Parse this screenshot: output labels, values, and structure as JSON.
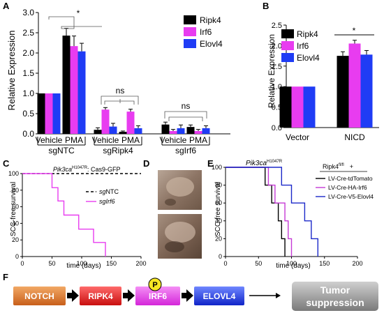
{
  "colors": {
    "ripk4": "#000000",
    "irf6": "#e83cf0",
    "elovl4": "#1f3cf5",
    "tdtomato": "#000000",
    "ha_irf6": "#c53ad6",
    "v5_elovl4": "#1b28c9"
  },
  "panels": {
    "A": "A",
    "B": "B",
    "C": "C",
    "D": "D",
    "E": "E",
    "F": "F"
  },
  "chart_data": [
    {
      "type": "bar",
      "panel": "A",
      "ylabel": "Relative Expression",
      "ylim": [
        0,
        3.0
      ],
      "yticks": [
        "0.0",
        "0.5",
        "1.0",
        "1.5",
        "2.0",
        "2.5",
        "3.0"
      ],
      "legend": [
        "Ripk4",
        "Irf6",
        "Elovl4"
      ],
      "legend_placement": "top-right",
      "groups": [
        {
          "name": "sgNTC",
          "categories": [
            "Vehicle",
            "PMA"
          ]
        },
        {
          "name": "sgRipk4",
          "categories": [
            "Vehicle",
            "PMA"
          ]
        },
        {
          "name": "sgIrf6",
          "categories": [
            "Vehicle",
            "PMA"
          ]
        }
      ],
      "series": [
        {
          "name": "Ripk4",
          "values": [
            1.0,
            2.43,
            0.1,
            0.05,
            0.23,
            0.17
          ],
          "errors": [
            0,
            0.18,
            0.05,
            0.02,
            0.06,
            0.05
          ]
        },
        {
          "name": "Irf6",
          "values": [
            1.0,
            2.17,
            0.6,
            0.55,
            0.07,
            0.07
          ],
          "errors": [
            0,
            0.25,
            0.05,
            0.06,
            0.04,
            0.04
          ]
        },
        {
          "name": "Elovl4",
          "values": [
            1.0,
            2.04,
            0.18,
            0.14,
            0.14,
            0.14
          ],
          "errors": [
            0,
            0.2,
            0.08,
            0.06,
            0.08,
            0.06
          ]
        }
      ],
      "annotations": [
        "*",
        "ns",
        "ns",
        "ns"
      ]
    },
    {
      "type": "bar",
      "panel": "B",
      "ylabel": "Relative Expression",
      "ylim": [
        0,
        2.5
      ],
      "yticks": [
        "0.0",
        "0.5",
        "1.0",
        "1.5",
        "2.0",
        "2.5"
      ],
      "legend": [
        "Ripk4",
        "Irf6",
        "Elovl4"
      ],
      "legend_placement": "top-left",
      "categories": [
        "Vector",
        "NICD"
      ],
      "series": [
        {
          "name": "Ripk4",
          "values": [
            1.0,
            1.75
          ],
          "errors": [
            0,
            0.1
          ]
        },
        {
          "name": "Irf6",
          "values": [
            1.0,
            2.05
          ],
          "errors": [
            0,
            0.08
          ]
        },
        {
          "name": "Elovl4",
          "values": [
            1.0,
            1.78
          ],
          "errors": [
            0,
            0.1
          ]
        }
      ],
      "annotations": [
        "*"
      ]
    },
    {
      "type": "line",
      "panel": "C",
      "title_parts": [
        "Pik3ca",
        "H1047R",
        ": Cas9-GFP"
      ],
      "xlabel": "time (days)",
      "ylabel": "SCC-free survival",
      "xlim": [
        0,
        200
      ],
      "ylim": [
        0,
        100
      ],
      "xticks": [
        "0",
        "50",
        "100",
        "150",
        "200"
      ],
      "yticks": [
        "0",
        "20",
        "40",
        "60",
        "80",
        "100"
      ],
      "series": [
        {
          "name": "sgNTC",
          "label_prefix": "sg",
          "label_gene": "NTC",
          "step": true,
          "dashed": true,
          "x": [
            0,
            200
          ],
          "y": [
            100,
            100
          ]
        },
        {
          "name": "sgIrf6",
          "label_prefix": "sg",
          "label_gene": "Irf6",
          "step": true,
          "x": [
            0,
            50,
            50,
            60,
            60,
            70,
            70,
            95,
            95,
            120,
            120,
            140,
            140
          ],
          "y": [
            100,
            100,
            83,
            83,
            67,
            67,
            50,
            50,
            33,
            33,
            17,
            17,
            0
          ]
        }
      ]
    },
    {
      "type": "line",
      "panel": "E",
      "title_parts": [
        "Pik3ca",
        "H1047R"
      ],
      "legend_header_parts": [
        "Ripk4",
        "fl/fl",
        "+"
      ],
      "xlabel": "time (days)",
      "ylabel": "SCC-free survival",
      "xlim": [
        0,
        200
      ],
      "ylim": [
        0,
        100
      ],
      "xticks": [
        "0",
        "50",
        "100",
        "150",
        "200"
      ],
      "yticks": [
        "0",
        "20",
        "40",
        "60",
        "80",
        "100"
      ],
      "series": [
        {
          "name": "LV-Cre-tdTomato",
          "step": true,
          "x": [
            0,
            60,
            60,
            70,
            70,
            80,
            80,
            85,
            85,
            90,
            90
          ],
          "y": [
            100,
            100,
            80,
            80,
            60,
            60,
            40,
            40,
            20,
            20,
            0
          ]
        },
        {
          "name": "LV-Cre-HA-Irf6",
          "step": true,
          "x": [
            0,
            65,
            65,
            75,
            75,
            90,
            90,
            95,
            95,
            100,
            100
          ],
          "y": [
            100,
            100,
            80,
            80,
            60,
            60,
            40,
            40,
            20,
            20,
            0
          ]
        },
        {
          "name": "LV-Cre-V5-Elovl4",
          "step": true,
          "x": [
            0,
            85,
            85,
            100,
            100,
            120,
            120,
            130,
            130,
            140,
            140
          ],
          "y": [
            100,
            100,
            80,
            80,
            60,
            60,
            40,
            40,
            20,
            20,
            0
          ]
        }
      ]
    }
  ],
  "pathway": {
    "nodes": [
      {
        "label": "NOTCH",
        "color": "#d9742a"
      },
      {
        "label": "RIPK4",
        "color": "#e21e1e"
      },
      {
        "label": "IRF6",
        "color": "#e53ce8"
      },
      {
        "label": "ELOVL4",
        "color": "#1c3ce0"
      }
    ],
    "phospho_label": "P",
    "outcome_line1": "Tumor",
    "outcome_line2": "suppression"
  },
  "photos_panel_label": "D"
}
